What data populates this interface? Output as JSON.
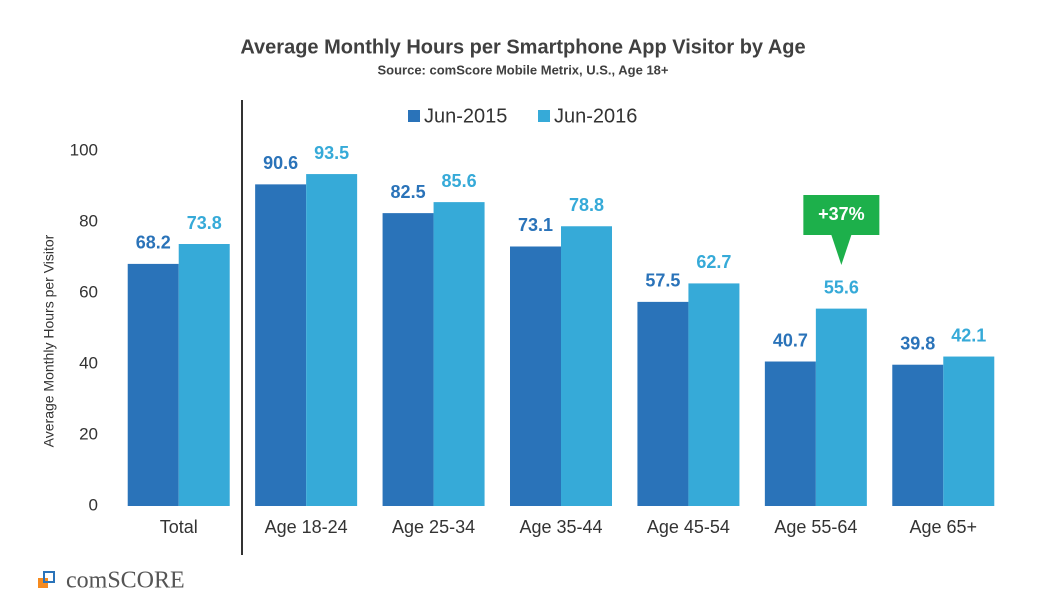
{
  "chart_data": {
    "type": "bar",
    "title": "Average Monthly Hours per Smartphone App Visitor by Age",
    "subtitle": "Source: comScore Mobile Metrix, U.S., Age 18+",
    "y_label": "Average Monthly Hours per Visitor",
    "categories": [
      "Total",
      "Age 18-24",
      "Age 25-34",
      "Age 35-44",
      "Age 45-54",
      "Age 55-64",
      "Age 65+"
    ],
    "series": [
      {
        "name": "Jun-2015",
        "color": "#2a73b9",
        "values": [
          68.2,
          90.6,
          82.5,
          73.1,
          57.5,
          40.7,
          39.8
        ]
      },
      {
        "name": "Jun-2016",
        "color": "#36aad8",
        "values": [
          73.8,
          93.5,
          85.6,
          78.8,
          62.7,
          55.6,
          42.1
        ]
      }
    ],
    "ylim": [
      0,
      100
    ],
    "yticks": [
      0,
      20,
      40,
      60,
      80,
      100
    ],
    "grid": false,
    "legend": "top",
    "annotation": {
      "text": "+37%",
      "color": "#1db04b"
    },
    "logo": "comSCORE"
  }
}
